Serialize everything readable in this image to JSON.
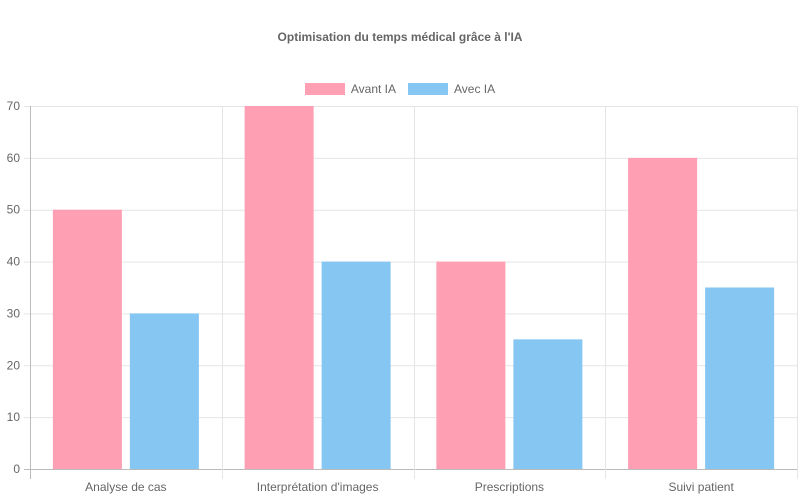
{
  "chart_data": {
    "type": "bar",
    "title": "Optimisation du temps médical grâce à l'IA",
    "categories": [
      "Analyse de cas",
      "Interprétation d'images",
      "Prescriptions",
      "Suivi patient"
    ],
    "series": [
      {
        "name": "Avant IA",
        "values": [
          50,
          70,
          40,
          60
        ],
        "color": "#ff9fb3"
      },
      {
        "name": "Avec IA",
        "values": [
          30,
          40,
          25,
          35
        ],
        "color": "#86c6f2"
      }
    ],
    "xlabel": "",
    "ylabel": "",
    "ylim": [
      0,
      70
    ],
    "yticks": [
      0,
      10,
      20,
      30,
      40,
      50,
      60,
      70
    ],
    "grid": true,
    "legend_position": "top"
  }
}
